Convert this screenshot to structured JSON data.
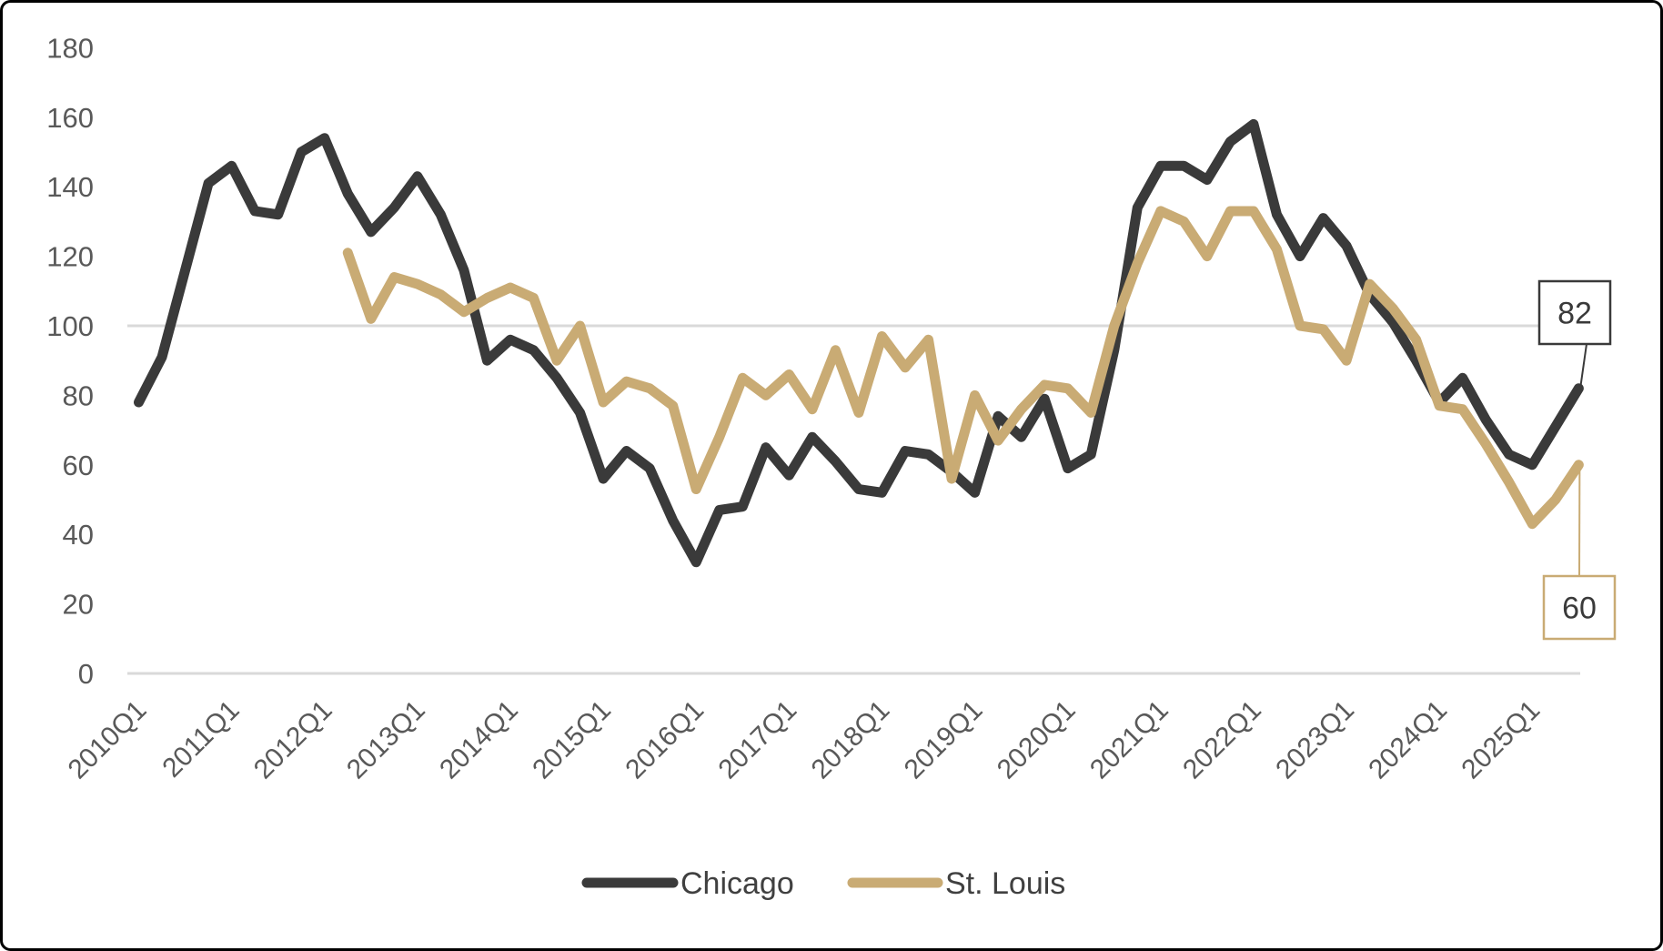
{
  "chart_data": {
    "type": "line",
    "title": "",
    "categories": [
      "2010Q1",
      "2010Q2",
      "2010Q3",
      "2010Q4",
      "2011Q1",
      "2011Q2",
      "2011Q3",
      "2011Q4",
      "2012Q1",
      "2012Q2",
      "2012Q3",
      "2012Q4",
      "2013Q1",
      "2013Q2",
      "2013Q3",
      "2013Q4",
      "2014Q1",
      "2014Q2",
      "2014Q3",
      "2014Q4",
      "2015Q1",
      "2015Q2",
      "2015Q3",
      "2015Q4",
      "2016Q1",
      "2016Q2",
      "2016Q3",
      "2016Q4",
      "2017Q1",
      "2017Q2",
      "2017Q3",
      "2017Q4",
      "2018Q1",
      "2018Q2",
      "2018Q3",
      "2018Q4",
      "2019Q1",
      "2019Q2",
      "2019Q3",
      "2019Q4",
      "2020Q1",
      "2020Q2",
      "2020Q3",
      "2020Q4",
      "2021Q1",
      "2021Q2",
      "2021Q3",
      "2021Q4",
      "2022Q1",
      "2022Q2",
      "2022Q3",
      "2022Q4",
      "2023Q1",
      "2023Q2",
      "2023Q3",
      "2023Q4",
      "2024Q1",
      "2024Q2",
      "2024Q3",
      "2024Q4",
      "2025Q1",
      "2025Q2",
      "2025Q3"
    ],
    "x_tick_labels": [
      "2010Q1",
      "2011Q1",
      "2012Q1",
      "2013Q1",
      "2014Q1",
      "2015Q1",
      "2016Q1",
      "2017Q1",
      "2018Q1",
      "2019Q1",
      "2020Q1",
      "2021Q1",
      "2022Q1",
      "2023Q1",
      "2024Q1",
      "2025Q1"
    ],
    "series": [
      {
        "name": "Chicago",
        "color": "#3a3a3a",
        "start_index": 0,
        "values": [
          78,
          91,
          116,
          141,
          146,
          133,
          132,
          150,
          154,
          138,
          127,
          134,
          143,
          132,
          116,
          90,
          96,
          93,
          85,
          75,
          56,
          64,
          59,
          44,
          32,
          47,
          48,
          65,
          57,
          68,
          61,
          53,
          52,
          64,
          63,
          58,
          52,
          74,
          68,
          79,
          59,
          63,
          93,
          134,
          146,
          146,
          142,
          153,
          158,
          132,
          120,
          131,
          123,
          109,
          101,
          90,
          78,
          85,
          73,
          63,
          60,
          71,
          82
        ]
      },
      {
        "name": "St. Louis",
        "color": "#c9ab74",
        "start_index": 9,
        "values": [
          121,
          102,
          114,
          112,
          109,
          104,
          108,
          111,
          108,
          90,
          100,
          78,
          84,
          82,
          77,
          53,
          68,
          85,
          80,
          86,
          76,
          93,
          75,
          97,
          88,
          96,
          56,
          80,
          67,
          76,
          83,
          82,
          75,
          100,
          118,
          133,
          130,
          120,
          133,
          133,
          122,
          100,
          99,
          90,
          112,
          105,
          96,
          77,
          76,
          66,
          55,
          43,
          50,
          60
        ]
      }
    ],
    "ylim": [
      0,
      180
    ],
    "y_tick_step": 20,
    "y_tick_labels": [
      "0",
      "20",
      "40",
      "60",
      "80",
      "100",
      "120",
      "140",
      "160",
      "180"
    ],
    "gridlines_at": [
      0,
      100
    ],
    "grid_on": true,
    "legend_position": "bottom",
    "legend_entries": [
      {
        "label": "Chicago",
        "color": "#3a3a3a"
      },
      {
        "label": "St. Louis",
        "color": "#c9ab74"
      }
    ],
    "end_labels": [
      {
        "series": "Chicago",
        "text": "82",
        "value": 82
      },
      {
        "series": "St. Louis",
        "text": "60",
        "value": 60
      }
    ],
    "colors": {
      "axis_text": "#595959",
      "gridline": "#d9d9d9",
      "background": "#ffffff",
      "frame_border": "#000000",
      "legend_text": "#404040",
      "callout_text": "#3a3a3a"
    }
  }
}
